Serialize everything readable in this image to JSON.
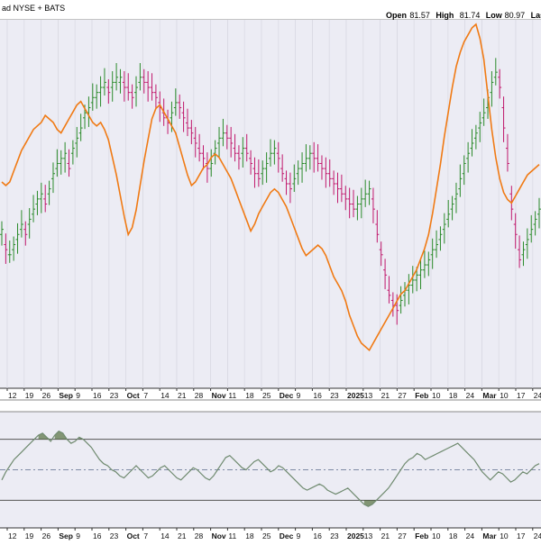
{
  "header": {
    "exchange": "ad NYSE + BATS",
    "open_label": "Open",
    "open": "81.57",
    "high_label": "High",
    "high": "81.74",
    "low_label": "Low",
    "low": "80.97",
    "last_label": "Last"
  },
  "colors": {
    "panel_bg": "#ececf4",
    "header_bg": "#dcdcdc",
    "up_bar": "#2a8a2a",
    "down_bar": "#c0186c",
    "overlay_line": "#f07a14",
    "indicator_line": "#6f8a6f",
    "indicator_fill": "#55703d",
    "band_line": "#555555"
  },
  "chart_data": [
    {
      "type": "ohlc",
      "x_tick_labels": [
        "12",
        "19",
        "26",
        "Sep",
        "9",
        "16",
        "23",
        "Oct",
        "7",
        "14",
        "21",
        "28",
        "Nov",
        "11",
        "18",
        "25",
        "Dec",
        "9",
        "16",
        "23",
        "2025",
        "13",
        "21",
        "27",
        "Feb",
        "10",
        "18",
        "24",
        "Mar",
        "10",
        "17",
        "24"
      ],
      "bar_closes": [
        56,
        52,
        51,
        53,
        55,
        57,
        55,
        58,
        60,
        62,
        63,
        61,
        64,
        67,
        69,
        70,
        71,
        68,
        72,
        74,
        76,
        79,
        80,
        82,
        83,
        84,
        85,
        83,
        85,
        86,
        86,
        84,
        83,
        82,
        84,
        86,
        85,
        84,
        83,
        82,
        80,
        78,
        77,
        79,
        81,
        80,
        78,
        76,
        75,
        73,
        71,
        70,
        68,
        69,
        72,
        74,
        75,
        74,
        73,
        71,
        70,
        72,
        71,
        69,
        67,
        66,
        68,
        69,
        71,
        72,
        70,
        67,
        65,
        64,
        66,
        68,
        69,
        70,
        71,
        70,
        69,
        68,
        67,
        66,
        65,
        64,
        63,
        62,
        61,
        60,
        61,
        62,
        63,
        64,
        60,
        55,
        51,
        47,
        43,
        41,
        40,
        42,
        44,
        45,
        46,
        47,
        48,
        49,
        50,
        52,
        53,
        55,
        57,
        59,
        61,
        63,
        66,
        69,
        71,
        73,
        75,
        77,
        79,
        82,
        85,
        87,
        84,
        76,
        69,
        60,
        55,
        50,
        52,
        54,
        56,
        58,
        60
      ],
      "bar_opens": [
        55,
        53,
        51,
        52,
        54,
        56,
        56,
        57,
        59,
        61,
        62,
        62,
        63,
        66,
        68,
        69,
        70,
        69,
        71,
        73,
        75,
        78,
        79,
        81,
        82,
        83,
        84,
        84,
        84,
        85,
        85,
        85,
        84,
        83,
        83,
        85,
        86,
        85,
        84,
        83,
        81,
        79,
        78,
        78,
        80,
        81,
        79,
        77,
        76,
        74,
        72,
        71,
        69,
        68,
        71,
        73,
        74,
        75,
        74,
        72,
        71,
        71,
        72,
        70,
        68,
        67,
        67,
        68,
        70,
        71,
        71,
        68,
        66,
        65,
        65,
        67,
        68,
        69,
        70,
        71,
        70,
        69,
        68,
        67,
        66,
        65,
        64,
        63,
        62,
        61,
        60,
        61,
        62,
        63,
        62,
        57,
        52,
        48,
        44,
        42,
        41,
        41,
        43,
        44,
        45,
        46,
        47,
        48,
        49,
        51,
        52,
        54,
        56,
        58,
        60,
        62,
        64,
        67,
        70,
        72,
        74,
        76,
        78,
        80,
        83,
        86,
        86,
        80,
        72,
        63,
        57,
        52,
        51,
        53,
        55,
        57,
        59
      ],
      "overlay_values": [
        55,
        54,
        55,
        58,
        61,
        64,
        66,
        68,
        70,
        71,
        72,
        74,
        73,
        72,
        70,
        69,
        71,
        73,
        75,
        77,
        78,
        76,
        74,
        72,
        71,
        72,
        70,
        67,
        62,
        57,
        51,
        45,
        40,
        42,
        47,
        54,
        61,
        67,
        73,
        76,
        77,
        75,
        73,
        71,
        69,
        65,
        61,
        57,
        54,
        55,
        57,
        59,
        60,
        62,
        63,
        62,
        60,
        58,
        56,
        53,
        50,
        47,
        44,
        41,
        43,
        46,
        48,
        50,
        52,
        53,
        52,
        50,
        48,
        45,
        42,
        39,
        36,
        34,
        35,
        36,
        37,
        36,
        34,
        31,
        28,
        26,
        24,
        21,
        17,
        14,
        11,
        9,
        8,
        7,
        9,
        11,
        13,
        15,
        17,
        19,
        21,
        23,
        24,
        26,
        28,
        30,
        33,
        36,
        40,
        46,
        53,
        60,
        68,
        75,
        82,
        88,
        92,
        95,
        97,
        99,
        100,
        96,
        90,
        80,
        70,
        62,
        56,
        52,
        50,
        49,
        51,
        53,
        55,
        57,
        58,
        59,
        60
      ]
    },
    {
      "type": "line",
      "title": "",
      "x_tick_labels": [
        "12",
        "19",
        "26",
        "Sep",
        "9",
        "16",
        "23",
        "Oct",
        "7",
        "14",
        "21",
        "28",
        "Nov",
        "11",
        "18",
        "25",
        "Dec",
        "9",
        "16",
        "23",
        "2025",
        "13",
        "21",
        "27",
        "Feb",
        "10",
        "18",
        "24",
        "Mar",
        "10",
        "17",
        "24"
      ],
      "values": [
        50,
        54,
        57,
        60,
        62,
        64,
        66,
        68,
        70,
        72,
        73,
        71,
        69,
        72,
        74,
        73,
        70,
        68,
        69,
        71,
        70,
        68,
        66,
        63,
        60,
        58,
        57,
        55,
        54,
        52,
        51,
        53,
        55,
        57,
        55,
        53,
        51,
        52,
        54,
        56,
        57,
        55,
        53,
        51,
        50,
        52,
        54,
        56,
        55,
        53,
        51,
        50,
        52,
        55,
        58,
        61,
        62,
        60,
        58,
        56,
        55,
        57,
        59,
        60,
        58,
        56,
        54,
        55,
        57,
        56,
        54,
        52,
        50,
        48,
        46,
        45,
        46,
        47,
        48,
        47,
        45,
        44,
        43,
        44,
        45,
        46,
        44,
        42,
        40,
        38,
        37,
        38,
        40,
        42,
        44,
        46,
        49,
        52,
        55,
        58,
        60,
        61,
        63,
        62,
        60,
        61,
        62,
        63,
        64,
        65,
        66,
        67,
        68,
        66,
        64,
        62,
        60,
        57,
        54,
        52,
        50,
        52,
        54,
        53,
        51,
        49,
        50,
        52,
        54,
        53,
        55,
        57,
        58
      ]
    }
  ]
}
